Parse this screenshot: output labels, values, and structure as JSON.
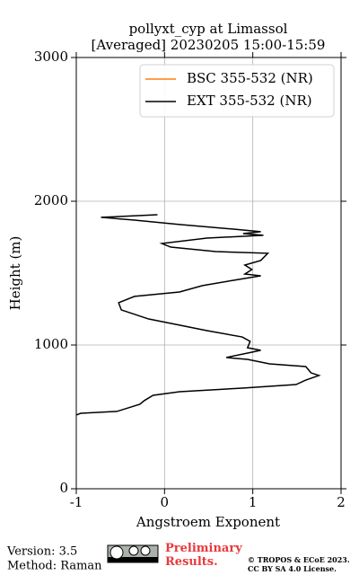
{
  "chart_data": {
    "type": "line",
    "title": "pollyxt_cyp at Limassol",
    "subtitle": "[Averaged] 20230205 15:00-15:59",
    "x_label": "Angstroem Exponent",
    "y_label": "Height (m)",
    "xlim": [
      -1,
      2
    ],
    "xticks": [
      -1,
      0,
      1,
      2
    ],
    "ylim": [
      0,
      3000
    ],
    "yticks": [
      0,
      1000,
      2000,
      3000
    ],
    "grid": true,
    "legend": "upper right",
    "series": [
      {
        "name": "BSC 355-532 (NR)",
        "color": "#ff7f0e",
        "x": [],
        "y": []
      },
      {
        "name": "EXT 355-532 (NR)",
        "color": "#000000",
        "x": [
          -0.08,
          -0.72,
          -0.34,
          0.17,
          0.78,
          1.09,
          0.89,
          1.12,
          0.48,
          -0.03,
          0.07,
          0.58,
          1.17,
          1.09,
          0.91,
          0.99,
          0.91,
          1.09,
          0.78,
          0.43,
          0.17,
          -0.34,
          -0.52,
          -0.49,
          -0.18,
          0.17,
          0.48,
          0.88,
          0.97,
          0.94,
          1.09,
          0.99,
          0.7,
          0.94,
          1.19,
          1.6,
          1.66,
          1.75,
          1.6,
          1.49,
          0.88,
          0.17,
          -0.13,
          -0.23,
          -0.28,
          -0.54,
          -0.95,
          -1.0
        ],
        "y": [
          1906,
          1888,
          1869,
          1838,
          1806,
          1788,
          1775,
          1763,
          1744,
          1706,
          1681,
          1650,
          1638,
          1588,
          1556,
          1525,
          1494,
          1481,
          1450,
          1413,
          1369,
          1338,
          1294,
          1244,
          1181,
          1138,
          1100,
          1056,
          1025,
          981,
          963,
          950,
          913,
          900,
          869,
          850,
          806,
          788,
          756,
          725,
          700,
          675,
          650,
          613,
          588,
          538,
          525,
          513
        ]
      }
    ]
  },
  "footer": {
    "version": "Version: 3.5",
    "method": "Method: Raman",
    "notice": "Preliminary Results.",
    "copyright": "© TROPOS & ECoE 2023.",
    "license": "CC BY SA 4.0 License."
  }
}
